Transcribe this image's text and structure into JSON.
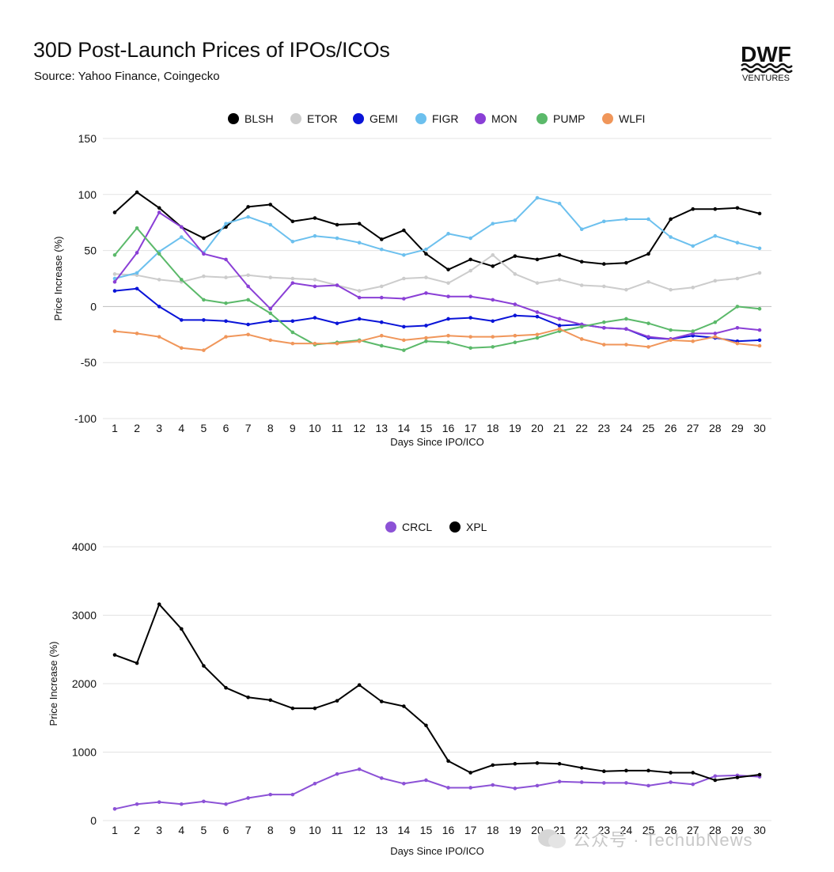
{
  "header": {
    "title": "30D Post-Launch Prices of IPOs/ICOs",
    "subtitle": "Source: Yahoo Finance, Coingecko"
  },
  "logo": {
    "text": "DWF",
    "subtext": "VENTURES"
  },
  "watermark": {
    "text": "公众号 · TechubNews"
  },
  "chart_data": [
    {
      "type": "line",
      "title": "",
      "xlabel": "Days Since IPO/ICO",
      "ylabel": "Price Increase (%)",
      "ylim": [
        -100,
        150
      ],
      "yticks": [
        -100,
        -50,
        0,
        50,
        100,
        150
      ],
      "grid": true,
      "legend_position": "top-center",
      "x": [
        1,
        2,
        3,
        4,
        5,
        6,
        7,
        8,
        9,
        10,
        11,
        12,
        13,
        14,
        15,
        16,
        17,
        18,
        19,
        20,
        21,
        22,
        23,
        24,
        25,
        26,
        27,
        28,
        29,
        30
      ],
      "series": [
        {
          "name": "BLSH",
          "color": "#000000",
          "values": [
            84,
            102,
            88,
            71,
            61,
            71,
            89,
            91,
            76,
            79,
            73,
            74,
            60,
            68,
            47,
            33,
            42,
            36,
            45,
            42,
            46,
            40,
            38,
            39,
            47,
            78,
            87,
            87,
            88,
            83
          ]
        },
        {
          "name": "ETOR",
          "color": "#cccccc",
          "values": [
            29,
            28,
            24,
            22,
            27,
            26,
            28,
            26,
            25,
            24,
            19,
            14,
            18,
            25,
            26,
            21,
            32,
            46,
            29,
            21,
            24,
            19,
            18,
            15,
            22,
            15,
            17,
            23,
            25,
            30
          ]
        },
        {
          "name": "GEMI",
          "color": "#0a14d8",
          "values": [
            14,
            16,
            0,
            -12,
            -12,
            -13,
            -16,
            -13,
            -13,
            -10,
            -15,
            -11,
            -14,
            -18,
            -17,
            -11,
            -10,
            -13,
            -8,
            -9,
            -17,
            -16,
            -19,
            -20,
            -28,
            -29,
            -26,
            -28,
            -31,
            -30
          ]
        },
        {
          "name": "FIGR",
          "color": "#6cc0ee",
          "values": [
            25,
            30,
            49,
            62,
            48,
            74,
            80,
            73,
            58,
            63,
            61,
            57,
            51,
            46,
            51,
            65,
            61,
            74,
            77,
            97,
            92,
            69,
            76,
            78,
            78,
            62,
            54,
            63,
            57,
            52
          ]
        },
        {
          "name": "MON",
          "color": "#8a3fd6",
          "values": [
            22,
            48,
            84,
            71,
            47,
            42,
            18,
            -2,
            21,
            18,
            19,
            8,
            8,
            7,
            12,
            9,
            9,
            6,
            2,
            -5,
            -11,
            -16,
            -19,
            -20,
            -27,
            -29,
            -24,
            -24,
            -19,
            -21
          ]
        },
        {
          "name": "PUMP",
          "color": "#5bb96a",
          "values": [
            46,
            70,
            47,
            24,
            6,
            3,
            6,
            -6,
            -23,
            -34,
            -32,
            -30,
            -35,
            -39,
            -31,
            -32,
            -37,
            -36,
            -32,
            -28,
            -22,
            -18,
            -14,
            -11,
            -15,
            -21,
            -22,
            -14,
            0,
            -2
          ]
        },
        {
          "name": "WLFI",
          "color": "#f0965a",
          "values": [
            -22,
            -24,
            -27,
            -37,
            -39,
            -27,
            -25,
            -30,
            -33,
            -33,
            -33,
            -31,
            -26,
            -30,
            -28,
            -26,
            -27,
            -27,
            -26,
            -25,
            -20,
            -29,
            -34,
            -34,
            -36,
            -30,
            -31,
            -27,
            -33,
            -35
          ]
        }
      ]
    },
    {
      "type": "line",
      "title": "",
      "xlabel": "Days Since IPO/ICO",
      "ylabel": "Price Increase (%)",
      "ylim": [
        0,
        4000
      ],
      "yticks": [
        0,
        1000,
        2000,
        3000,
        4000
      ],
      "grid": true,
      "legend_position": "top-center",
      "x": [
        1,
        2,
        3,
        4,
        5,
        6,
        7,
        8,
        9,
        10,
        11,
        12,
        13,
        14,
        15,
        16,
        17,
        18,
        19,
        20,
        21,
        22,
        23,
        24,
        25,
        26,
        27,
        28,
        29,
        30
      ],
      "series": [
        {
          "name": "CRCL",
          "color": "#8c52d6",
          "values": [
            170,
            240,
            270,
            240,
            280,
            240,
            330,
            380,
            380,
            540,
            680,
            750,
            620,
            540,
            590,
            480,
            480,
            520,
            470,
            510,
            570,
            560,
            550,
            550,
            510,
            560,
            530,
            650,
            660,
            640
          ]
        },
        {
          "name": "XPL",
          "color": "#000000",
          "values": [
            2420,
            2300,
            3160,
            2800,
            2260,
            1940,
            1800,
            1760,
            1640,
            1640,
            1750,
            1980,
            1740,
            1670,
            1390,
            870,
            700,
            810,
            830,
            840,
            830,
            770,
            720,
            730,
            730,
            700,
            700,
            590,
            630,
            670
          ]
        }
      ]
    }
  ]
}
